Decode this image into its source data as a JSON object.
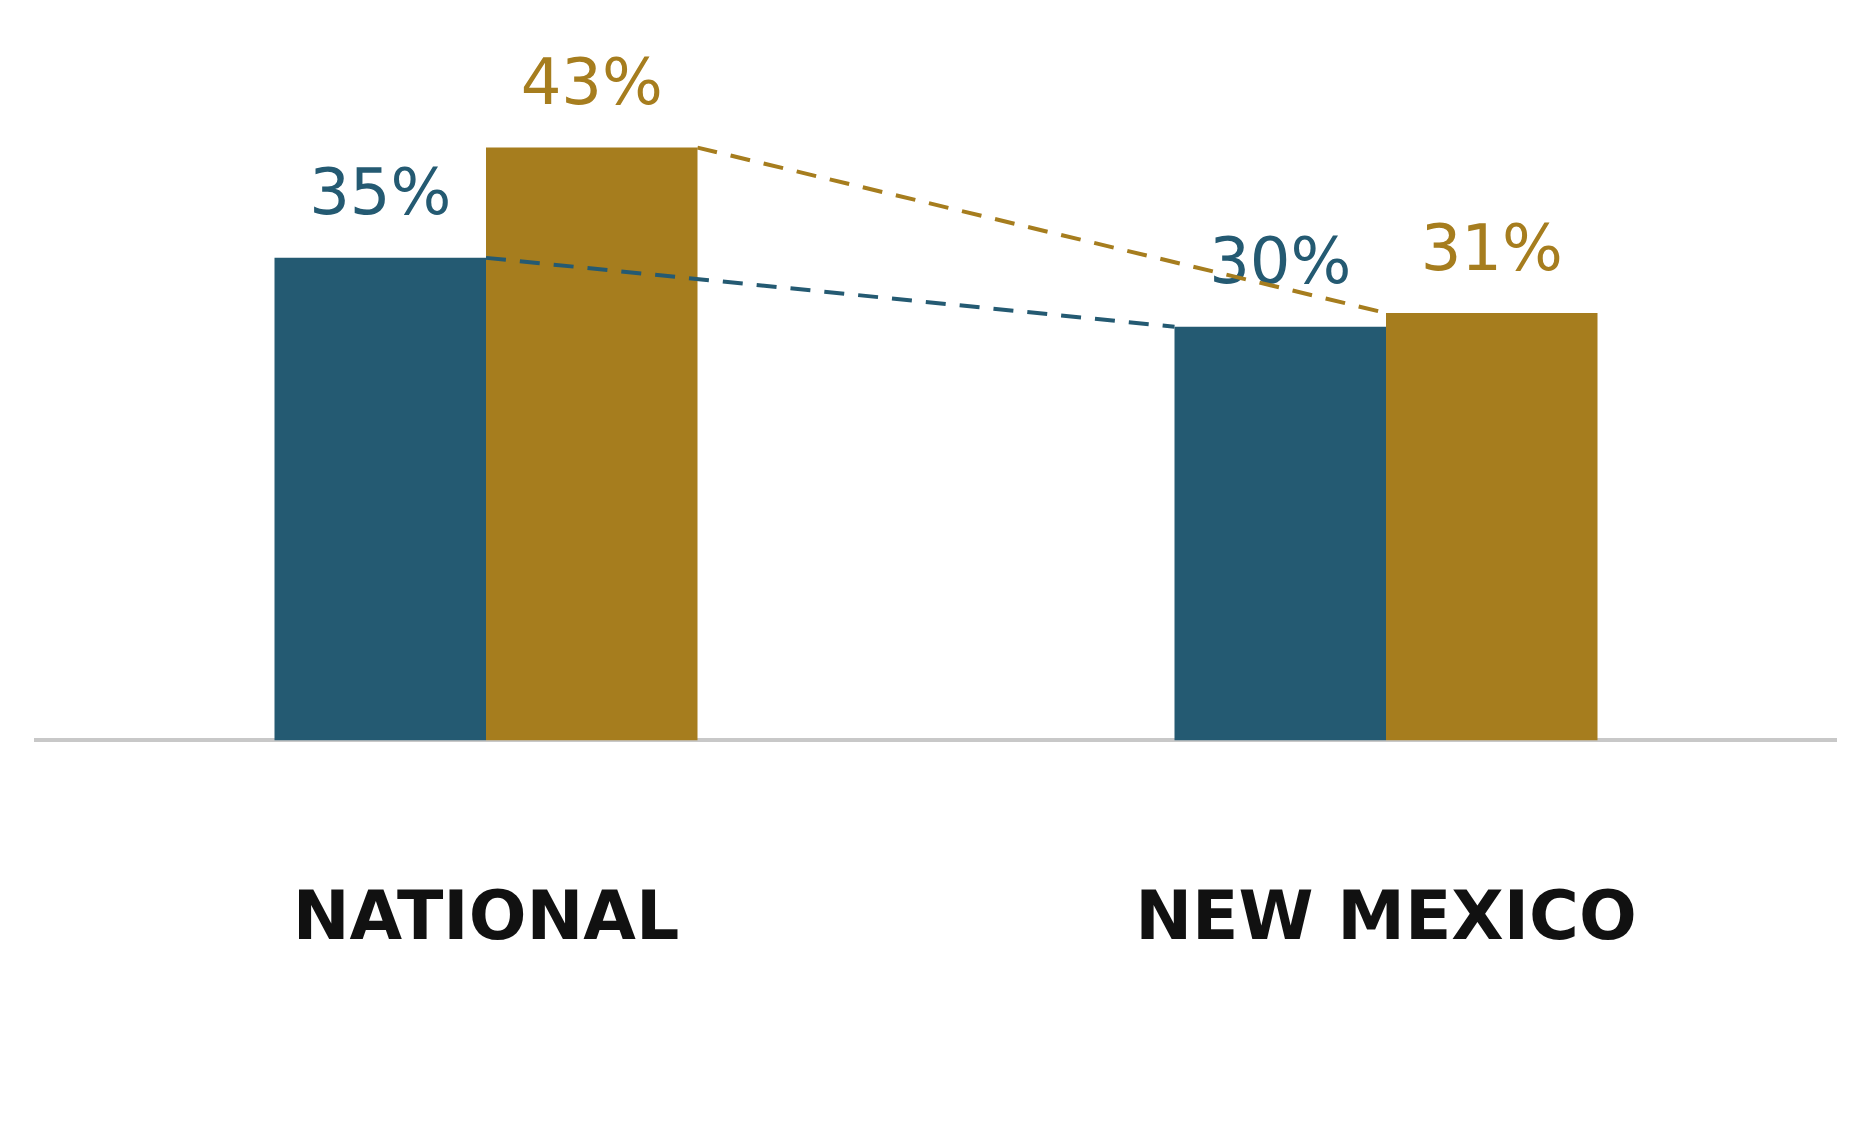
{
  "chart_data": {
    "type": "bar",
    "categories": [
      "NATIONAL",
      "NEW MEXICO"
    ],
    "series": [
      {
        "color": "#245a72",
        "values": [
          35,
          30
        ],
        "value_labels": [
          "35%",
          "30%"
        ]
      },
      {
        "color": "#a67d1e",
        "values": [
          43,
          31
        ],
        "value_labels": [
          "43%",
          "31%"
        ]
      }
    ],
    "tick_labels": "x",
    "grid": false,
    "legend": false,
    "line_style": "dashed"
  }
}
